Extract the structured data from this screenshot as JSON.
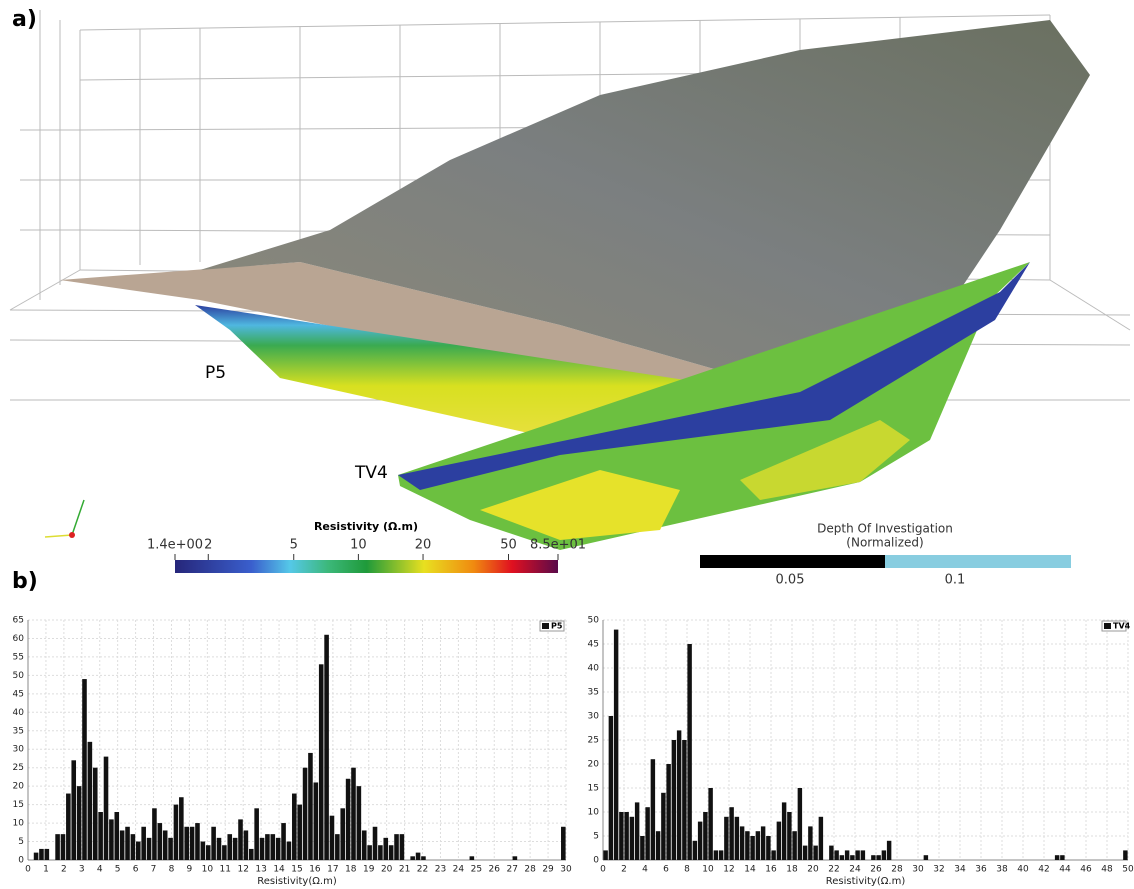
{
  "panel_a": {
    "label": "a)",
    "section_labels": [
      "P5",
      "TV4"
    ],
    "colorbar": {
      "title": "Resistivity (Ω.m)",
      "scale": "log",
      "range": [
        1.4,
        85
      ],
      "ticks": [
        {
          "value": 1.4,
          "label": "1.4e+00"
        },
        2,
        5,
        10,
        20,
        50,
        {
          "value": 85,
          "label": "8.5e+01"
        }
      ]
    },
    "doi": {
      "title": [
        "Depth Of Investigation",
        "(Normalized)"
      ],
      "tick_labels": [
        "0.05",
        "0.1"
      ]
    }
  },
  "panel_b": {
    "label": "b)"
  },
  "chart_data": [
    {
      "type": "histogram",
      "legend": "P5",
      "legend_position": "upper right",
      "color": "#111111",
      "xlabel": "Resistivity(Ω.m)",
      "grid": true,
      "bins": [
        0,
        0.3,
        0.6,
        0.9,
        1.2,
        1.5,
        1.8,
        2.1,
        2.4,
        2.7,
        3,
        3.3,
        3.6,
        3.9,
        4.2,
        4.5,
        4.8,
        5.1,
        5.4,
        5.7,
        6,
        6.3,
        6.6,
        6.9,
        7.2,
        7.5,
        7.8,
        8.1,
        8.4,
        8.7,
        9,
        9.3,
        9.6,
        9.9,
        10.2,
        10.5,
        10.8,
        11.1,
        11.4,
        11.7,
        12,
        12.3,
        12.6,
        12.9,
        13.2,
        13.5,
        13.8,
        14.1,
        14.4,
        14.7,
        15,
        15.3,
        15.6,
        15.9,
        16.2,
        16.5,
        16.8,
        17.1,
        17.4,
        17.7,
        18,
        18.3,
        18.6,
        18.9,
        19.2,
        19.5,
        19.8,
        20.1,
        20.4,
        20.7,
        21,
        21.3,
        21.6,
        21.9,
        22.2,
        22.5,
        22.8,
        23.1,
        23.4,
        23.7,
        24,
        24.3,
        24.6,
        24.9,
        25.2,
        25.5,
        25.8,
        26.1,
        26.4,
        26.7,
        27,
        27.3,
        27.6,
        27.9,
        28.2,
        28.5,
        28.8,
        29.1,
        29.4,
        29.7,
        30
      ],
      "counts": [
        0,
        2,
        3,
        3,
        0,
        7,
        7,
        18,
        27,
        20,
        49,
        32,
        25,
        13,
        28,
        11,
        13,
        8,
        9,
        7,
        5,
        9,
        6,
        14,
        10,
        8,
        6,
        15,
        17,
        9,
        9,
        10,
        5,
        4,
        9,
        6,
        4,
        7,
        6,
        11,
        8,
        3,
        14,
        6,
        7,
        7,
        6,
        10,
        5,
        18,
        15,
        25,
        29,
        21,
        53,
        61,
        12,
        7,
        14,
        22,
        25,
        20,
        8,
        4,
        9,
        4,
        6,
        4,
        7,
        7,
        0,
        1,
        2,
        1,
        0,
        0,
        0,
        0,
        0,
        0,
        0,
        0,
        1,
        0,
        0,
        0,
        0,
        0,
        0,
        0,
        1,
        0,
        0,
        0,
        0,
        0,
        0,
        0,
        0,
        9
      ],
      "xlim": [
        0,
        30
      ],
      "xticks": [
        0,
        1,
        2,
        3,
        4,
        5,
        6,
        7,
        8,
        9,
        10,
        11,
        12,
        13,
        14,
        15,
        16,
        17,
        18,
        19,
        20,
        21,
        22,
        23,
        24,
        25,
        26,
        27,
        28,
        29,
        30
      ],
      "ylim": [
        0,
        65
      ],
      "yticks": [
        0,
        5,
        10,
        15,
        20,
        25,
        30,
        35,
        40,
        45,
        50,
        55,
        60,
        65
      ]
    },
    {
      "type": "histogram",
      "legend": "TV4",
      "legend_position": "upper right",
      "color": "#111111",
      "xlabel": "Resistivity(Ω.m)",
      "grid": true,
      "bins": [
        0,
        0.5,
        1,
        1.5,
        2,
        2.5,
        3,
        3.5,
        4,
        4.5,
        5,
        5.5,
        6,
        6.5,
        7,
        7.5,
        8,
        8.5,
        9,
        9.5,
        10,
        10.5,
        11,
        11.5,
        12,
        12.5,
        13,
        13.5,
        14,
        14.5,
        15,
        15.5,
        16,
        16.5,
        17,
        17.5,
        18,
        18.5,
        19,
        19.5,
        20,
        20.5,
        21,
        21.5,
        22,
        22.5,
        23,
        23.5,
        24,
        24.5,
        25,
        25.5,
        26,
        26.5,
        27,
        27.5,
        28,
        28.5,
        29,
        29.5,
        30,
        30.5,
        31,
        31.5,
        32,
        32.5,
        33,
        33.5,
        34,
        34.5,
        35,
        35.5,
        36,
        36.5,
        37,
        37.5,
        38,
        38.5,
        39,
        39.5,
        40,
        40.5,
        41,
        41.5,
        42,
        42.5,
        43,
        43.5,
        44,
        44.5,
        45,
        45.5,
        46,
        46.5,
        47,
        47.5,
        48,
        48.5,
        49,
        49.5,
        50
      ],
      "counts": [
        2,
        30,
        48,
        10,
        10,
        9,
        12,
        5,
        11,
        21,
        6,
        14,
        20,
        25,
        27,
        25,
        45,
        4,
        8,
        10,
        15,
        2,
        2,
        9,
        11,
        9,
        7,
        6,
        5,
        6,
        7,
        5,
        2,
        8,
        12,
        10,
        6,
        15,
        3,
        7,
        3,
        9,
        0,
        3,
        2,
        1,
        2,
        1,
        2,
        2,
        0,
        1,
        1,
        2,
        4,
        0,
        0,
        0,
        0,
        0,
        0,
        1,
        0,
        0,
        0,
        0,
        0,
        0,
        0,
        0,
        0,
        0,
        0,
        0,
        0,
        0,
        0,
        0,
        0,
        0,
        0,
        0,
        0,
        0,
        0,
        0,
        1,
        1,
        0,
        0,
        0,
        0,
        0,
        0,
        0,
        0,
        0,
        0,
        0,
        2
      ],
      "xlim": [
        0,
        50
      ],
      "xticks": [
        0,
        2,
        4,
        6,
        8,
        10,
        12,
        14,
        16,
        18,
        20,
        22,
        24,
        26,
        28,
        30,
        32,
        34,
        36,
        38,
        40,
        42,
        44,
        46,
        48,
        50
      ],
      "ylim": [
        0,
        50
      ],
      "yticks": [
        0,
        5,
        10,
        15,
        20,
        25,
        30,
        35,
        40,
        45,
        50
      ]
    }
  ]
}
